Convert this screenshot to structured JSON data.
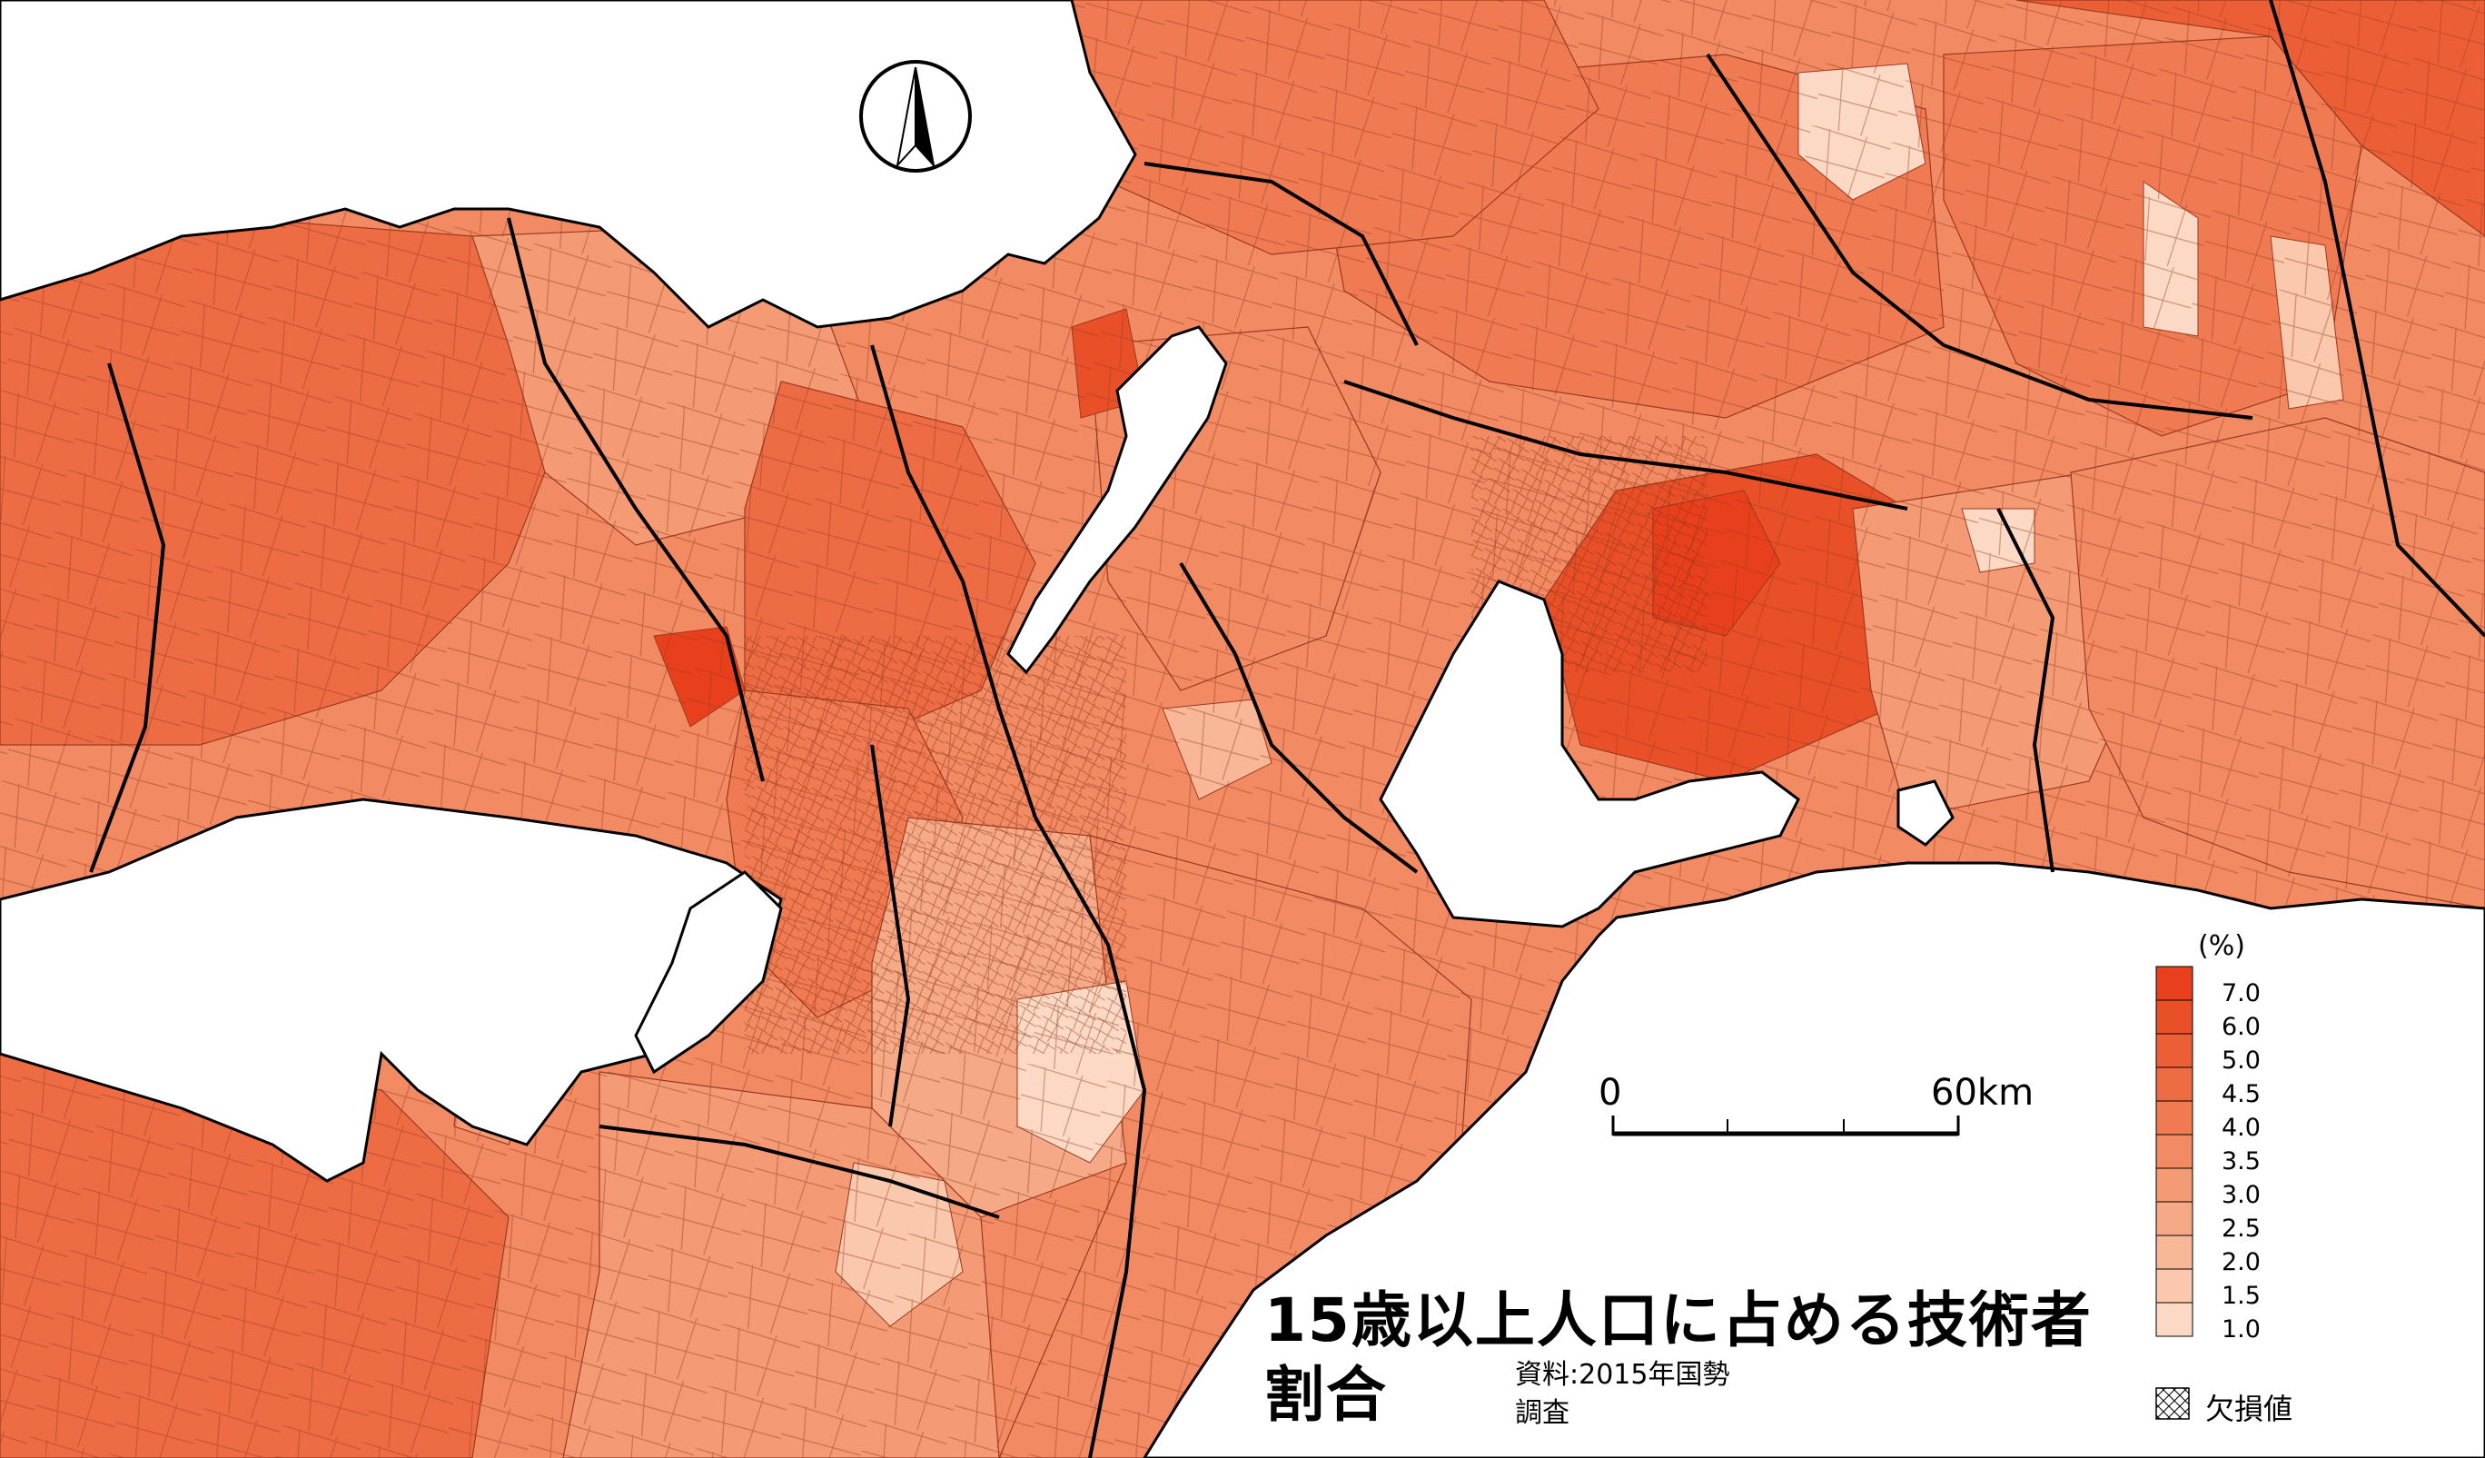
{
  "title": {
    "line1": "15歳以上人口に占める技術者",
    "line2": "割合"
  },
  "source": {
    "line1": "資料:2015年国勢",
    "line2": "調査"
  },
  "legend": {
    "unit": "(%)",
    "classes": [
      {
        "label": "7.0",
        "color": "#e8401c"
      },
      {
        "label": "6.0",
        "color": "#ea5028"
      },
      {
        "label": "5.0",
        "color": "#ec5f36"
      },
      {
        "label": "4.5",
        "color": "#ee6c44"
      },
      {
        "label": "4.0",
        "color": "#f07b53"
      },
      {
        "label": "3.5",
        "color": "#f28a63"
      },
      {
        "label": "3.0",
        "color": "#f49a74"
      },
      {
        "label": "2.5",
        "color": "#f6a986"
      },
      {
        "label": "2.0",
        "color": "#f8b898"
      },
      {
        "label": "1.5",
        "color": "#fac8ad"
      },
      {
        "label": "1.0",
        "color": "#fcd9c4"
      }
    ],
    "missing_label": "欠損値"
  },
  "scale_bar": {
    "start_label": "0",
    "end_label": "60km"
  },
  "north_arrow": {
    "icon": "north-arrow-icon"
  },
  "colors": {
    "water": "#ffffff",
    "boundary": "#000000"
  }
}
